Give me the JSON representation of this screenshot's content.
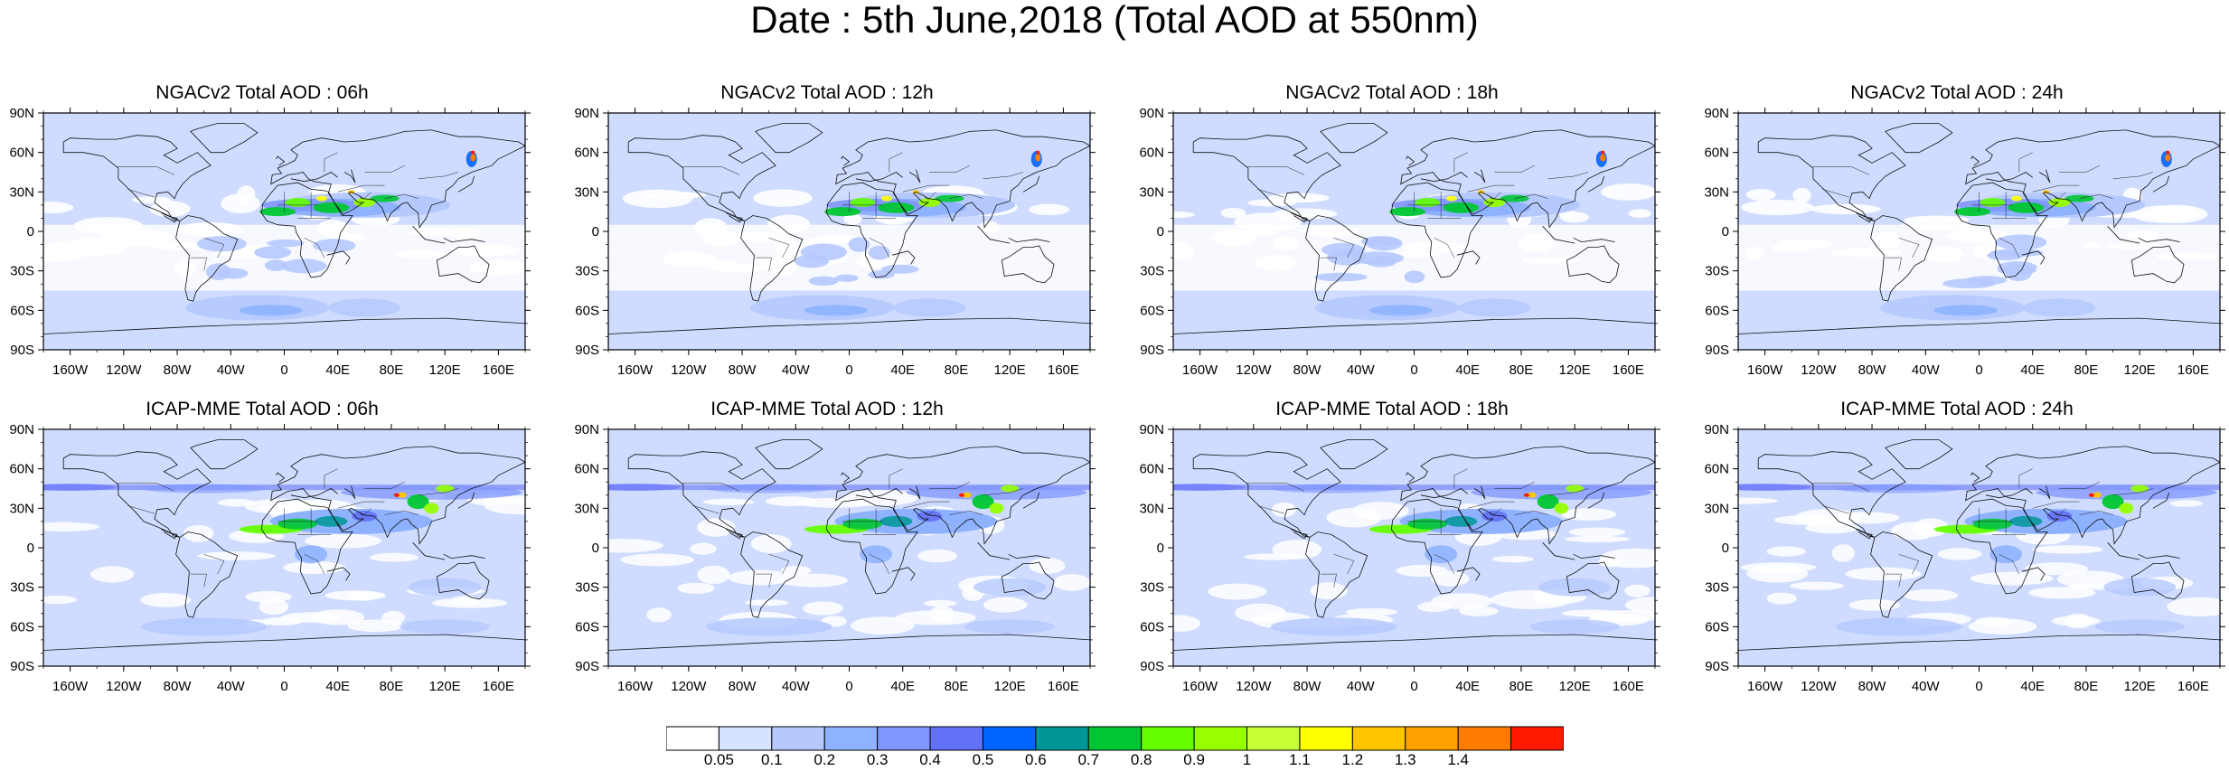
{
  "title": "Date : 5th June,2018 (Total AOD at 550nm)",
  "lat_ticks": [
    "90N",
    "60N",
    "30N",
    "0",
    "30S",
    "60S",
    "90S"
  ],
  "lon_ticks": [
    "160W",
    "120W",
    "80W",
    "40W",
    "0",
    "40E",
    "80E",
    "120E",
    "160E"
  ],
  "panels": [
    {
      "title": "NGACv2 Total AOD : 06h"
    },
    {
      "title": "NGACv2 Total AOD : 12h"
    },
    {
      "title": "NGACv2 Total AOD : 18h"
    },
    {
      "title": "NGACv2 Total AOD : 24h"
    },
    {
      "title": "ICAP-MME Total AOD : 06h"
    },
    {
      "title": "ICAP-MME Total AOD : 12h"
    },
    {
      "title": "ICAP-MME Total AOD : 18h"
    },
    {
      "title": "ICAP-MME Total AOD : 24h"
    }
  ],
  "colorbar": {
    "colors": [
      "#ffffff",
      "#d6e2ff",
      "#b5c9ff",
      "#8eb2ff",
      "#7f96ff",
      "#6370f8",
      "#0063ff",
      "#009696",
      "#00c633",
      "#63ff00",
      "#96ff00",
      "#c6ff33",
      "#ffff00",
      "#ffc600",
      "#ffa000",
      "#ff7c00",
      "#ff1900"
    ],
    "labels": [
      "0.05",
      "0.1",
      "0.2",
      "0.3",
      "0.4",
      "0.5",
      "0.6",
      "0.7",
      "0.8",
      "0.9",
      "1",
      "1.1",
      "1.2",
      "1.3",
      "1.4"
    ]
  }
}
